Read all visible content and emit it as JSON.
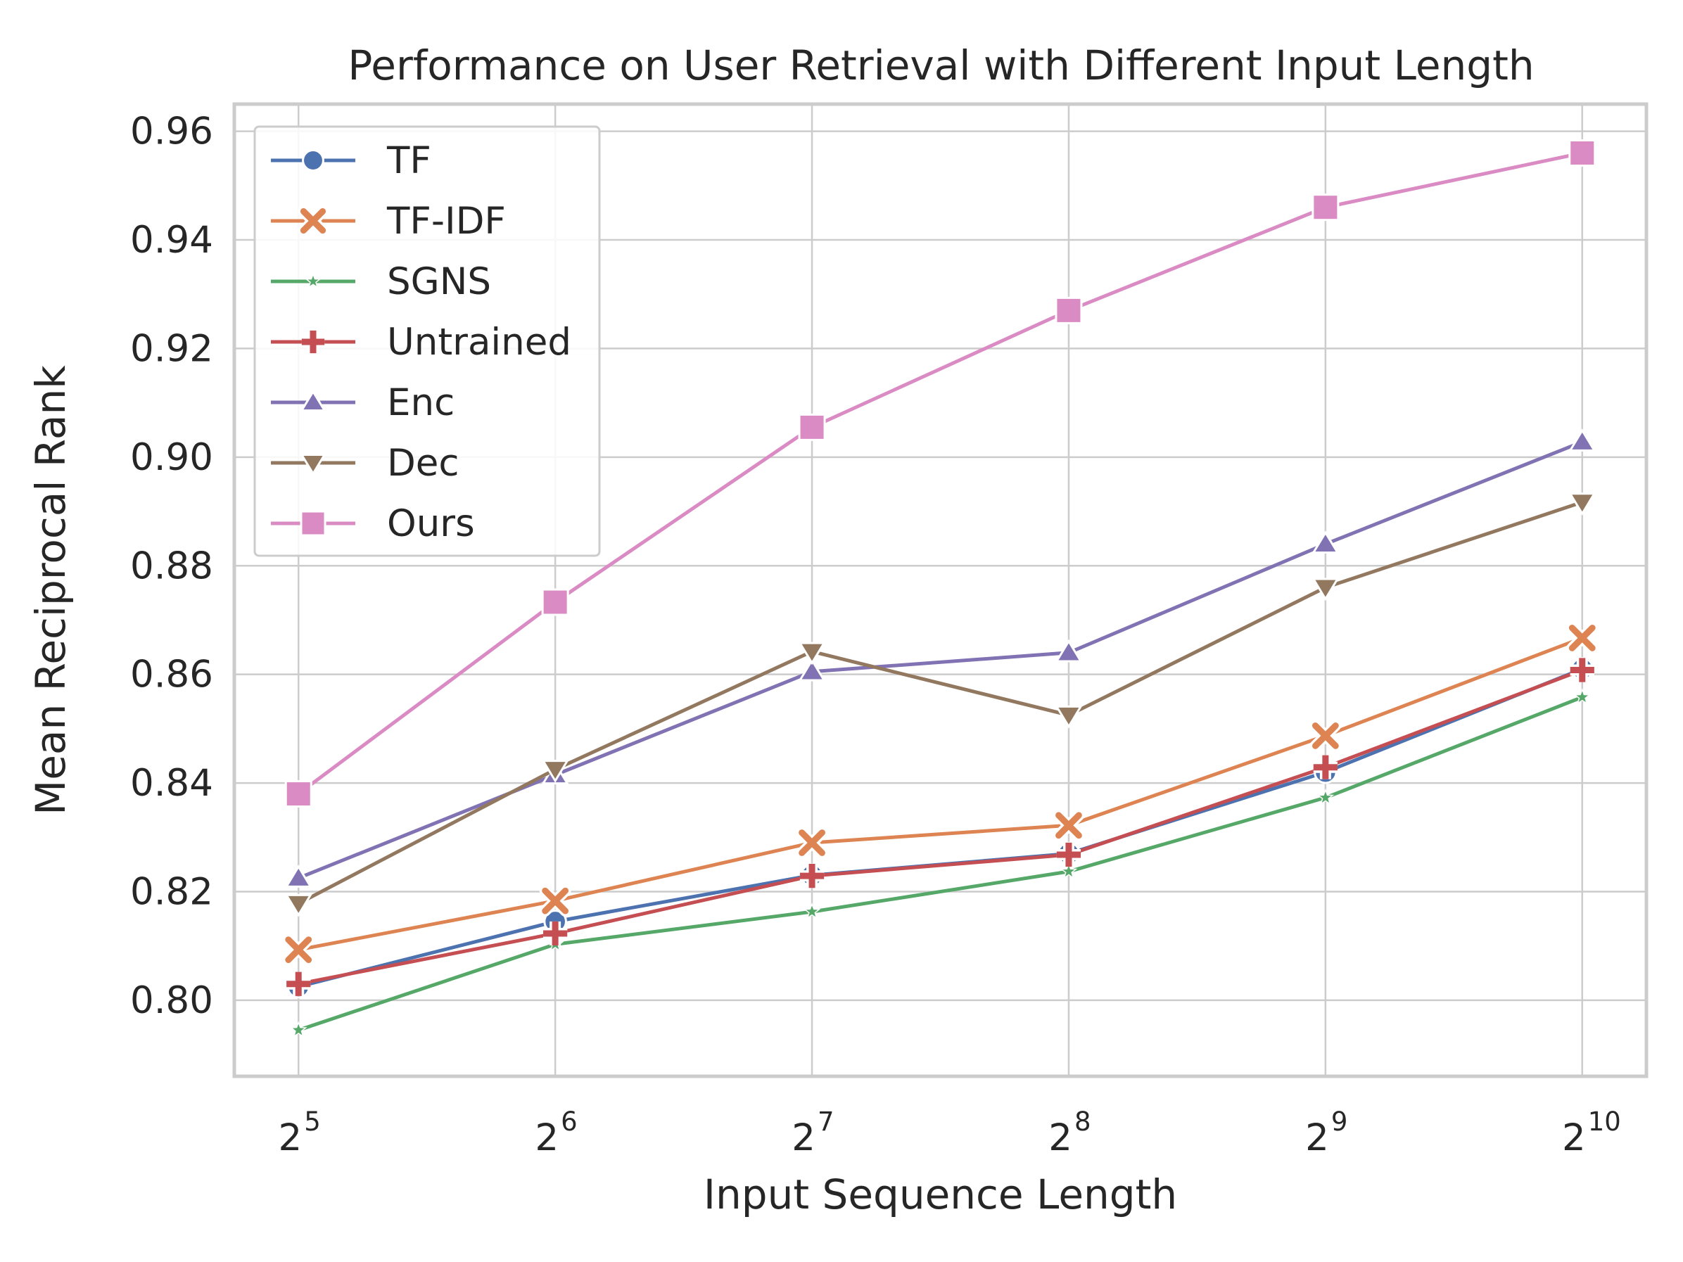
{
  "chart_data": {
    "type": "line",
    "title": "Performance on User Retrieval with Different Input Length",
    "xlabel": "Input Sequence Length",
    "ylabel": "Mean Reciprocal Rank",
    "x": [
      5,
      6,
      7,
      8,
      9,
      10
    ],
    "x_tick_labels": [
      {
        "base": "2",
        "exp": "5"
      },
      {
        "base": "2",
        "exp": "6"
      },
      {
        "base": "2",
        "exp": "7"
      },
      {
        "base": "2",
        "exp": "8"
      },
      {
        "base": "2",
        "exp": "9"
      },
      {
        "base": "2",
        "exp": "10"
      }
    ],
    "y_ticks": [
      0.8,
      0.82,
      0.84,
      0.86,
      0.88,
      0.9,
      0.92,
      0.94,
      0.96
    ],
    "y_tick_labels": [
      "0.80",
      "0.82",
      "0.84",
      "0.86",
      "0.88",
      "0.90",
      "0.92",
      "0.94",
      "0.96"
    ],
    "ylim": [
      0.786,
      0.965
    ],
    "xlim": [
      4.75,
      10.25
    ],
    "grid": true,
    "legend_position": "top-left",
    "series": [
      {
        "name": "TF",
        "color": "#4c72b0",
        "marker": "circle",
        "values": [
          0.8025,
          0.8145,
          0.823,
          0.827,
          0.842,
          0.861
        ]
      },
      {
        "name": "TF-IDF",
        "color": "#dd8452",
        "marker": "x",
        "values": [
          0.8093,
          0.8183,
          0.829,
          0.8322,
          0.8487,
          0.8667
        ]
      },
      {
        "name": "SGNS",
        "color": "#55a868",
        "marker": "star",
        "values": [
          0.7945,
          0.8103,
          0.8163,
          0.8237,
          0.8373,
          0.8558
        ]
      },
      {
        "name": "Untrained",
        "color": "#c44e52",
        "marker": "plus",
        "values": [
          0.803,
          0.8123,
          0.8229,
          0.8268,
          0.8429,
          0.8608
        ]
      },
      {
        "name": "Enc",
        "color": "#8172b3",
        "marker": "triangle-up",
        "values": [
          0.8225,
          0.8415,
          0.8605,
          0.864,
          0.884,
          0.9028
        ]
      },
      {
        "name": "Dec",
        "color": "#937860",
        "marker": "triangle-down",
        "values": [
          0.8178,
          0.8425,
          0.8642,
          0.8525,
          0.876,
          0.8917
        ]
      },
      {
        "name": "Ours",
        "color": "#da8bc3",
        "marker": "square",
        "values": [
          0.838,
          0.8733,
          0.9055,
          0.927,
          0.946,
          0.956
        ]
      }
    ]
  }
}
